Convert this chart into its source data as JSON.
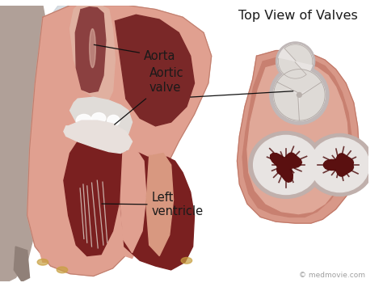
{
  "top_view_title": "Top View of Valves",
  "labels": {
    "aorta": "Aorta",
    "aortic_valve": "Aortic\nvalve",
    "left_ventricle": "Left\nventricle"
  },
  "watermark": "© medmovie.com",
  "bg_color": "#ffffff",
  "heart_salmon": "#e0a090",
  "heart_inner_salmon": "#d08878",
  "heart_dark_red": "#7a2020",
  "heart_medium_red": "#a03030",
  "aorta_pink": "#d4a090",
  "white_area": "#e8e4e2",
  "off_white": "#dedad8",
  "valve_dark": "#5a1010",
  "top_view_outer": "#d4908080",
  "text_color": "#1a1a1a",
  "title_fontsize": 11.5,
  "label_fontsize": 10.5,
  "watermark_fontsize": 6.5,
  "body_bg": "#c8b0a0",
  "gray_tissue": "#a09088"
}
